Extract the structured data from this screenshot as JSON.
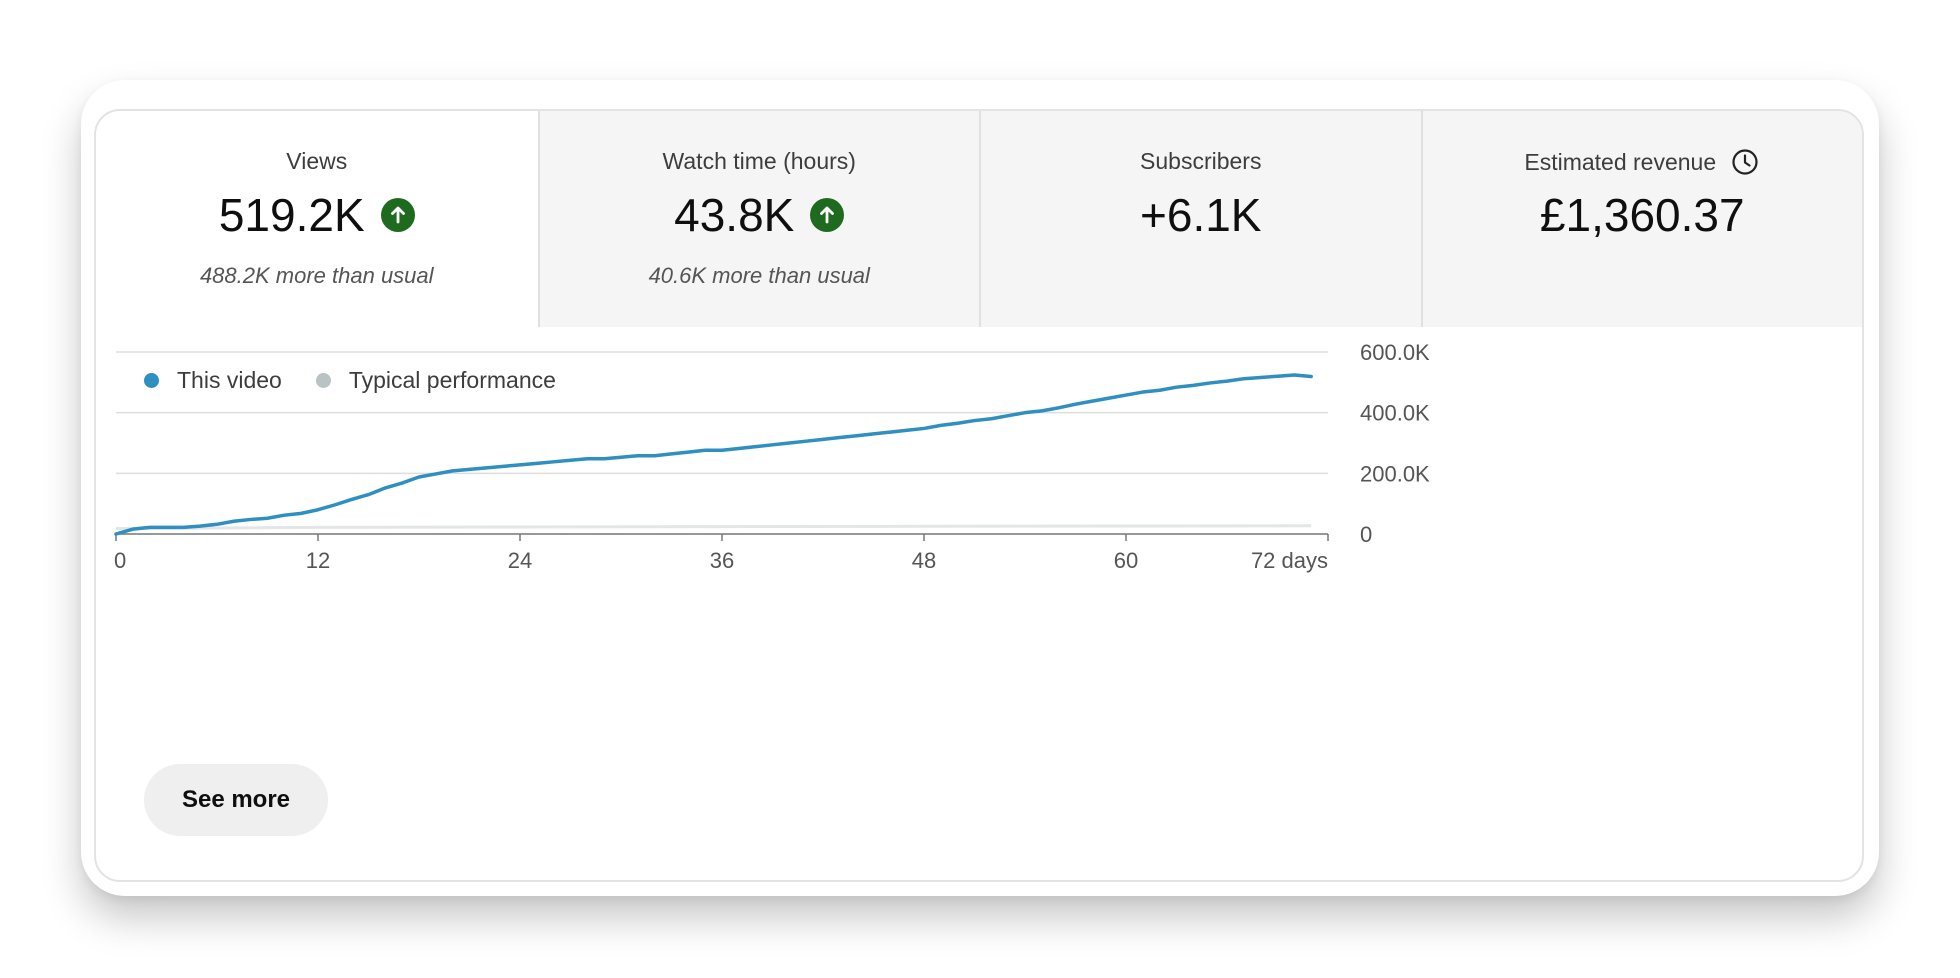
{
  "metrics": [
    {
      "label": "Views",
      "value": "519.2K",
      "trend": "up",
      "note": "488.2K more than usual"
    },
    {
      "label": "Watch time (hours)",
      "value": "43.8K",
      "trend": "up",
      "note": "40.6K more than usual"
    },
    {
      "label": "Subscribers",
      "value": "+6.1K"
    },
    {
      "label": "Estimated revenue",
      "value": "£1,360.37",
      "icon": "clock-icon"
    }
  ],
  "legend": {
    "this_video": "This video",
    "typical": "Typical performance"
  },
  "colors": {
    "this_video": "#2e8fc0",
    "typical": "#b9c3c3",
    "trend_up": "#1e6b1f"
  },
  "see_more_label": "See more",
  "chart_data": {
    "type": "line",
    "title": "",
    "xlabel": "",
    "ylabel": "",
    "x_unit_suffix": "days",
    "xlim": [
      0,
      72
    ],
    "ylim": [
      0,
      600000
    ],
    "x_ticks": [
      0,
      12,
      24,
      36,
      48,
      60,
      72
    ],
    "x_tick_labels": [
      "0",
      "12",
      "24",
      "36",
      "48",
      "60",
      "72 days"
    ],
    "y_ticks": [
      0,
      200000,
      400000,
      600000
    ],
    "y_tick_labels": [
      "0",
      "200.0K",
      "400.0K",
      "600.0K"
    ],
    "series": [
      {
        "name": "This video",
        "x": [
          0,
          1,
          2,
          3,
          4,
          5,
          6,
          7,
          8,
          9,
          10,
          11,
          12,
          13,
          14,
          15,
          16,
          17,
          18,
          19,
          20,
          21,
          22,
          23,
          24,
          25,
          26,
          27,
          28,
          29,
          30,
          31,
          32,
          33,
          34,
          35,
          36,
          37,
          38,
          39,
          40,
          41,
          42,
          43,
          44,
          45,
          46,
          47,
          48,
          49,
          50,
          51,
          52,
          53,
          54,
          55,
          56,
          57,
          58,
          59,
          60,
          61,
          62,
          63,
          64,
          65,
          66,
          67,
          68,
          69,
          70,
          71
        ],
        "values": [
          0,
          16000,
          22000,
          22000,
          22000,
          26000,
          32000,
          42000,
          48000,
          52000,
          62000,
          68000,
          80000,
          96000,
          114000,
          130000,
          152000,
          168000,
          188000,
          198000,
          208000,
          213000,
          218000,
          223000,
          228000,
          233000,
          238000,
          243000,
          248000,
          248000,
          253000,
          258000,
          258000,
          264000,
          270000,
          276000,
          276000,
          282000,
          288000,
          294000,
          300000,
          306000,
          312000,
          318000,
          324000,
          330000,
          336000,
          342000,
          348000,
          358000,
          365000,
          374000,
          380000,
          390000,
          400000,
          406000,
          416000,
          428000,
          438000,
          448000,
          458000,
          468000,
          474000,
          484000,
          490000,
          498000,
          504000,
          512000,
          516000,
          520000,
          524000,
          519200
        ]
      },
      {
        "name": "Typical performance",
        "x": [
          0,
          12,
          24,
          36,
          48,
          60,
          71
        ],
        "values": [
          18000,
          22000,
          23000,
          24500,
          25500,
          26500,
          27000
        ]
      }
    ]
  }
}
